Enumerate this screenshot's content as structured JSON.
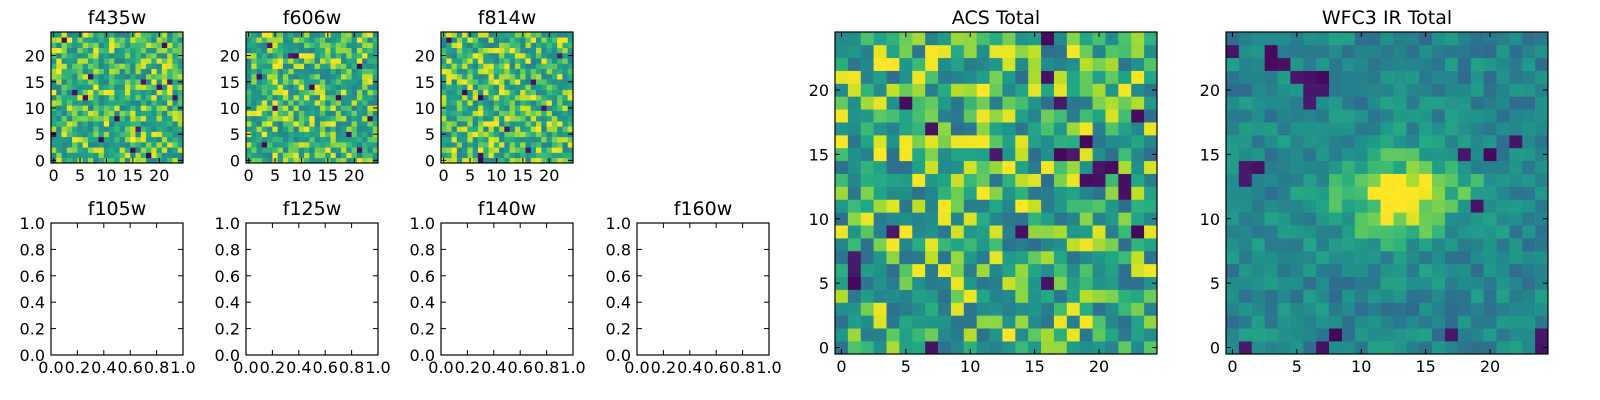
{
  "chart_data": [
    {
      "id": "f435w",
      "type": "heatmap",
      "title": "f435w",
      "x_ticks": [
        0,
        5,
        10,
        15,
        20
      ],
      "y_ticks": [
        0,
        5,
        10,
        15,
        20
      ],
      "xlim": [
        -0.5,
        24.5
      ],
      "ylim": [
        -0.5,
        24.5
      ],
      "grid_size": [
        25,
        25
      ],
      "colormap": "viridis",
      "texture": "noisy",
      "value_range": [
        0.55,
        1.0
      ],
      "dark_pixels": [
        [
          23,
          2
        ],
        [
          22,
          21
        ],
        [
          16,
          7
        ],
        [
          15,
          17
        ],
        [
          15,
          22
        ],
        [
          14,
          20
        ],
        [
          13,
          4
        ],
        [
          12,
          23
        ],
        [
          12,
          6
        ],
        [
          8,
          12
        ],
        [
          6,
          16
        ],
        [
          5,
          0
        ],
        [
          4,
          9
        ],
        [
          2,
          15
        ],
        [
          1,
          18
        ]
      ]
    },
    {
      "id": "f606w",
      "type": "heatmap",
      "title": "f606w",
      "x_ticks": [
        0,
        5,
        10,
        15,
        20
      ],
      "y_ticks": [
        0,
        5,
        10,
        15,
        20
      ],
      "xlim": [
        -0.5,
        24.5
      ],
      "ylim": [
        -0.5,
        24.5
      ],
      "grid_size": [
        25,
        25
      ],
      "colormap": "viridis",
      "texture": "noisy",
      "value_range": [
        0.55,
        1.0
      ],
      "dark_pixels": [
        [
          22,
          4
        ],
        [
          20,
          8
        ],
        [
          20,
          9
        ],
        [
          18,
          21
        ],
        [
          16,
          2
        ],
        [
          14,
          12
        ],
        [
          12,
          17
        ],
        [
          10,
          5
        ],
        [
          8,
          23
        ],
        [
          5,
          19
        ],
        [
          3,
          3
        ],
        [
          2,
          21
        ]
      ]
    },
    {
      "id": "f814w",
      "type": "heatmap",
      "title": "f814w",
      "x_ticks": [
        0,
        5,
        10,
        15,
        20
      ],
      "y_ticks": [
        0,
        5,
        10,
        15,
        20
      ],
      "xlim": [
        -0.5,
        24.5
      ],
      "ylim": [
        -0.5,
        24.5
      ],
      "grid_size": [
        25,
        25
      ],
      "colormap": "viridis",
      "texture": "noisy",
      "value_range": [
        0.55,
        1.0
      ],
      "dark_pixels": [
        [
          23,
          1
        ],
        [
          20,
          22
        ],
        [
          15,
          17
        ],
        [
          13,
          4
        ],
        [
          12,
          7
        ],
        [
          10,
          19
        ],
        [
          6,
          12
        ],
        [
          2,
          16
        ],
        [
          1,
          7
        ],
        [
          0,
          7
        ]
      ]
    },
    {
      "id": "f105w",
      "type": "empty",
      "title": "f105w",
      "x_ticks": [
        "0.0",
        "0.2",
        "0.4",
        "0.6",
        "0.8",
        "1.0"
      ],
      "y_ticks": [
        "0.0",
        "0.2",
        "0.4",
        "0.6",
        "0.8",
        "1.0"
      ],
      "xlim": [
        0,
        1
      ],
      "ylim": [
        0,
        1
      ]
    },
    {
      "id": "f125w",
      "type": "empty",
      "title": "f125w",
      "x_ticks": [
        "0.0",
        "0.2",
        "0.4",
        "0.6",
        "0.8",
        "1.0"
      ],
      "y_ticks": [
        "0.0",
        "0.2",
        "0.4",
        "0.6",
        "0.8",
        "1.0"
      ],
      "xlim": [
        0,
        1
      ],
      "ylim": [
        0,
        1
      ]
    },
    {
      "id": "f140w",
      "type": "empty",
      "title": "f140w",
      "x_ticks": [
        "0.0",
        "0.2",
        "0.4",
        "0.6",
        "0.8",
        "1.0"
      ],
      "y_ticks": [
        "0.0",
        "0.2",
        "0.4",
        "0.6",
        "0.8",
        "1.0"
      ],
      "xlim": [
        0,
        1
      ],
      "ylim": [
        0,
        1
      ]
    },
    {
      "id": "f160w",
      "type": "empty",
      "title": "f160w",
      "x_ticks": [
        "0.0",
        "0.2",
        "0.4",
        "0.6",
        "0.8",
        "1.0"
      ],
      "y_ticks": [
        "0.0",
        "0.2",
        "0.4",
        "0.6",
        "0.8",
        "1.0"
      ],
      "xlim": [
        0,
        1
      ],
      "ylim": [
        0,
        1
      ]
    },
    {
      "id": "acs_total",
      "type": "heatmap",
      "title": "ACS Total",
      "x_ticks": [
        0,
        5,
        10,
        15,
        20
      ],
      "y_ticks": [
        0,
        5,
        10,
        15,
        20
      ],
      "xlim": [
        -0.5,
        24.5
      ],
      "ylim": [
        -0.5,
        24.5
      ],
      "grid_size": [
        25,
        25
      ],
      "colormap": "viridis",
      "texture": "noisy",
      "value_range": [
        0.45,
        1.0
      ],
      "dark_pixels": [
        [
          24,
          16
        ],
        [
          21,
          16
        ],
        [
          19,
          5
        ],
        [
          19,
          17
        ],
        [
          18,
          23
        ],
        [
          17,
          7
        ],
        [
          16,
          19
        ],
        [
          15,
          12
        ],
        [
          15,
          17
        ],
        [
          15,
          18
        ],
        [
          14,
          20
        ],
        [
          14,
          21
        ],
        [
          13,
          19
        ],
        [
          13,
          20
        ],
        [
          13,
          22
        ],
        [
          12,
          22
        ],
        [
          9,
          4
        ],
        [
          9,
          14
        ],
        [
          9,
          23
        ],
        [
          7,
          1
        ],
        [
          6,
          1
        ],
        [
          5,
          1
        ],
        [
          5,
          16
        ],
        [
          0,
          7
        ]
      ],
      "bright_pixels": [
        [
          23,
          7
        ],
        [
          23,
          8
        ],
        [
          22,
          3
        ],
        [
          22,
          4
        ],
        [
          21,
          1
        ],
        [
          20,
          11
        ],
        [
          19,
          3
        ],
        [
          18,
          11
        ],
        [
          17,
          19
        ],
        [
          16,
          5
        ],
        [
          16,
          10
        ],
        [
          16,
          14
        ],
        [
          15,
          3
        ],
        [
          14,
          13
        ],
        [
          13,
          6
        ],
        [
          12,
          11
        ],
        [
          11,
          4
        ],
        [
          11,
          14
        ],
        [
          10,
          2
        ],
        [
          10,
          8
        ],
        [
          9,
          20
        ],
        [
          9,
          24
        ],
        [
          8,
          7
        ],
        [
          7,
          12
        ],
        [
          6,
          6
        ],
        [
          5,
          9
        ],
        [
          4,
          10
        ],
        [
          3,
          3
        ],
        [
          2,
          17
        ],
        [
          1,
          13
        ]
      ]
    },
    {
      "id": "wfc3_ir_total",
      "type": "heatmap",
      "title": "WFC3 IR Total",
      "x_ticks": [
        0,
        5,
        10,
        15,
        20
      ],
      "y_ticks": [
        0,
        5,
        10,
        15,
        20
      ],
      "xlim": [
        -0.5,
        24.5
      ],
      "ylim": [
        -0.5,
        24.5
      ],
      "grid_size": [
        25,
        25
      ],
      "colormap": "viridis",
      "texture": "smooth",
      "value_range": [
        0.4,
        0.9
      ],
      "bright_center": [
        13,
        12
      ],
      "bright_extent": [
        4,
        2.5
      ],
      "dark_pixels": [
        [
          23,
          0
        ],
        [
          23,
          3
        ],
        [
          22,
          3
        ],
        [
          22,
          4
        ],
        [
          21,
          5
        ],
        [
          21,
          6
        ],
        [
          21,
          7
        ],
        [
          20,
          6
        ],
        [
          20,
          7
        ],
        [
          19,
          6
        ],
        [
          16,
          22
        ],
        [
          15,
          18
        ],
        [
          15,
          20
        ],
        [
          14,
          1
        ],
        [
          14,
          2
        ],
        [
          13,
          1
        ],
        [
          11,
          19
        ],
        [
          1,
          8
        ],
        [
          1,
          17
        ],
        [
          1,
          24
        ],
        [
          0,
          1
        ],
        [
          0,
          7
        ],
        [
          0,
          24
        ]
      ]
    }
  ]
}
